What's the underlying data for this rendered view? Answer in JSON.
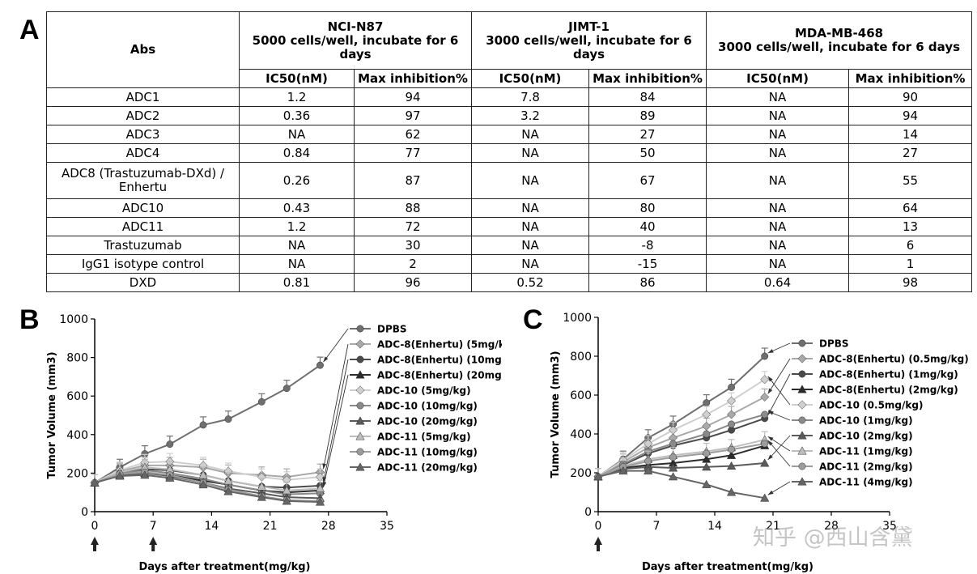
{
  "panels": {
    "a": "A",
    "b": "B",
    "c": "C"
  },
  "table": {
    "abs_header": "Abs",
    "groups": [
      {
        "name": "NCI-N87",
        "line2": "5000 cells/well, incubate for 6",
        "line3": "days"
      },
      {
        "name": "JIMT-1",
        "line2": "3000 cells/well, incubate for 6",
        "line3": "days"
      },
      {
        "name": "MDA-MB-468",
        "line2": "3000 cells/well, incubate for 6 days",
        "line3": ""
      }
    ],
    "subheaders": [
      "IC50(nM)",
      "Max inhibition%",
      "IC50(nM)",
      "Max inhibition%",
      "IC50(nM)",
      "Max inhibition%"
    ],
    "rows": [
      {
        "name": "ADC1",
        "name2": "",
        "cells": [
          "1.2",
          "94",
          "7.8",
          "84",
          "NA",
          "90"
        ]
      },
      {
        "name": "ADC2",
        "name2": "",
        "cells": [
          "0.36",
          "97",
          "3.2",
          "89",
          "NA",
          "94"
        ]
      },
      {
        "name": "ADC3",
        "name2": "",
        "cells": [
          "NA",
          "62",
          "NA",
          "27",
          "NA",
          "14"
        ]
      },
      {
        "name": "ADC4",
        "name2": "",
        "cells": [
          "0.84",
          "77",
          "NA",
          "50",
          "NA",
          "27"
        ]
      },
      {
        "name": "ADC8 (Trastuzumab-DXd) /",
        "name2": "Enhertu",
        "cells": [
          "0.26",
          "87",
          "NA",
          "67",
          "NA",
          "55"
        ]
      },
      {
        "name": "ADC10",
        "name2": "",
        "cells": [
          "0.43",
          "88",
          "NA",
          "80",
          "NA",
          "64"
        ]
      },
      {
        "name": "ADC11",
        "name2": "",
        "cells": [
          "1.2",
          "72",
          "NA",
          "40",
          "NA",
          "13"
        ]
      },
      {
        "name": "Trastuzumab",
        "name2": "",
        "cells": [
          "NA",
          "30",
          "NA",
          "-8",
          "NA",
          "6"
        ]
      },
      {
        "name": "IgG1 isotype control",
        "name2": "",
        "cells": [
          "NA",
          "2",
          "NA",
          "-15",
          "NA",
          "1"
        ]
      },
      {
        "name": "DXD",
        "name2": "",
        "cells": [
          "0.81",
          "96",
          "0.52",
          "86",
          "0.64",
          "98"
        ]
      }
    ]
  },
  "chart_data": [
    {
      "type": "line",
      "panel": "B",
      "ylabel": "Tumor Volume (mm3)",
      "xlabel": "Days after treatment(mg/kg)",
      "xlim": [
        0,
        35
      ],
      "ylim": [
        0,
        1000
      ],
      "xticks": [
        0,
        7,
        14,
        21,
        28,
        35
      ],
      "yticks": [
        0,
        200,
        400,
        600,
        800,
        1000
      ],
      "dosing_days": [
        0,
        7
      ],
      "x": [
        0,
        3,
        6,
        9,
        13,
        16,
        20,
        23,
        27
      ],
      "series": [
        {
          "name": "DPBS",
          "color": "#6f6f6f",
          "marker": "circle",
          "values": [
            150,
            230,
            300,
            350,
            450,
            480,
            570,
            640,
            760
          ]
        },
        {
          "name": "ADC-8(Enhertu) (5mg/kg)",
          "color": "#a9a9a9",
          "marker": "diamond",
          "values": [
            150,
            210,
            240,
            240,
            230,
            200,
            190,
            180,
            205
          ]
        },
        {
          "name": "ADC-8(Enhertu) (10mg/kg)",
          "color": "#4a4a4a",
          "marker": "circle",
          "values": [
            150,
            200,
            220,
            215,
            190,
            160,
            130,
            125,
            135
          ]
        },
        {
          "name": "ADC-8(Enhertu) (20mg/kg)",
          "color": "#2b2b2b",
          "marker": "triangle",
          "values": [
            150,
            190,
            200,
            190,
            160,
            140,
            110,
            100,
            110
          ]
        },
        {
          "name": "ADC-10 (5mg/kg)",
          "color": "#cfcfcf",
          "marker": "diamond",
          "values": [
            150,
            215,
            255,
            260,
            240,
            210,
            180,
            165,
            180
          ]
        },
        {
          "name": "ADC-10 (10mg/kg)",
          "color": "#8a8a8a",
          "marker": "circle",
          "values": [
            150,
            200,
            215,
            200,
            170,
            140,
            110,
            90,
            95
          ]
        },
        {
          "name": "ADC-10 (20mg/kg)",
          "color": "#5a5a5a",
          "marker": "triangle",
          "values": [
            150,
            190,
            200,
            185,
            150,
            120,
            95,
            75,
            70
          ]
        },
        {
          "name": "ADC-11 (5mg/kg)",
          "color": "#bdbdbd",
          "marker": "triangle",
          "values": [
            150,
            205,
            230,
            220,
            190,
            160,
            130,
            110,
            120
          ]
        },
        {
          "name": "ADC-11 (10mg/kg)",
          "color": "#9c9c9c",
          "marker": "circle",
          "values": [
            150,
            195,
            205,
            190,
            150,
            115,
            80,
            60,
            55
          ]
        },
        {
          "name": "ADC-11 (20mg/kg)",
          "color": "#666666",
          "marker": "triangle",
          "values": [
            150,
            185,
            190,
            175,
            140,
            105,
            75,
            55,
            50
          ]
        }
      ]
    },
    {
      "type": "line",
      "panel": "C",
      "ylabel": "Tumor Volume (mm3)",
      "xlabel": "Days after treatment(mg/kg)",
      "xlim": [
        0,
        35
      ],
      "ylim": [
        0,
        1000
      ],
      "xticks": [
        0,
        7,
        14,
        21,
        28,
        35
      ],
      "yticks": [
        0,
        200,
        400,
        600,
        800,
        1000
      ],
      "dosing_days": [
        0
      ],
      "x": [
        0,
        3,
        6,
        9,
        13,
        16,
        20
      ],
      "series": [
        {
          "name": "DPBS",
          "color": "#6f6f6f",
          "marker": "circle",
          "values": [
            180,
            270,
            380,
            450,
            560,
            640,
            800
          ]
        },
        {
          "name": "ADC-8(Enhertu) (0.5mg/kg)",
          "color": "#a9a9a9",
          "marker": "diamond",
          "values": [
            180,
            255,
            330,
            380,
            440,
            500,
            590
          ]
        },
        {
          "name": "ADC-8(Enhertu) (1mg/kg)",
          "color": "#4a4a4a",
          "marker": "circle",
          "values": [
            180,
            240,
            300,
            340,
            380,
            420,
            480
          ]
        },
        {
          "name": "ADC-8(Enhertu) (2mg/kg)",
          "color": "#2b2b2b",
          "marker": "triangle",
          "values": [
            180,
            225,
            240,
            250,
            270,
            290,
            340
          ]
        },
        {
          "name": "ADC-10 (0.5mg/kg)",
          "color": "#cfcfcf",
          "marker": "diamond",
          "values": [
            180,
            265,
            350,
            420,
            500,
            570,
            680
          ]
        },
        {
          "name": "ADC-10 (1mg/kg)",
          "color": "#8a8a8a",
          "marker": "circle",
          "values": [
            180,
            245,
            310,
            350,
            400,
            450,
            500
          ]
        },
        {
          "name": "ADC-10 (2mg/kg)",
          "color": "#5a5a5a",
          "marker": "triangle",
          "values": [
            180,
            220,
            230,
            225,
            230,
            235,
            250
          ]
        },
        {
          "name": "ADC-11 (1mg/kg)",
          "color": "#bdbdbd",
          "marker": "triangle",
          "values": [
            180,
            235,
            270,
            290,
            310,
            330,
            370
          ]
        },
        {
          "name": "ADC-11 (2mg/kg)",
          "color": "#9c9c9c",
          "marker": "circle",
          "values": [
            180,
            230,
            260,
            280,
            300,
            320,
            350
          ]
        },
        {
          "name": "ADC-11 (4mg/kg)",
          "color": "#666666",
          "marker": "triangle",
          "values": [
            180,
            210,
            210,
            180,
            140,
            100,
            70
          ]
        }
      ]
    }
  ],
  "watermark": "知乎 @西山含黛"
}
